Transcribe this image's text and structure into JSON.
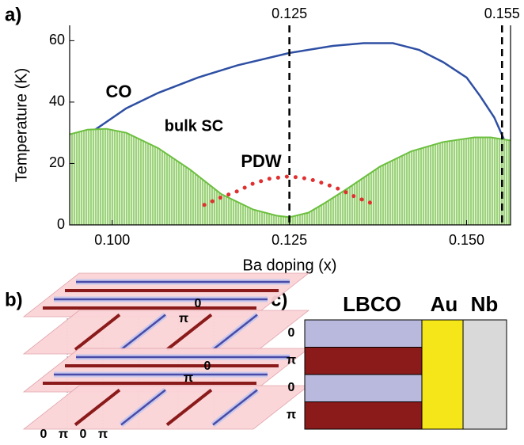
{
  "chart_data": {
    "type": "line",
    "panel_label": "a)",
    "x_label": "Ba doping (x)",
    "y_label": "Temperature (K)",
    "xlim": [
      0.094,
      0.1562
    ],
    "ylim": [
      0,
      65
    ],
    "xticks": [
      {
        "value": 0.1,
        "label": "0.100"
      },
      {
        "value": 0.125,
        "label": "0.125"
      },
      {
        "value": 0.15,
        "label": "0.150"
      }
    ],
    "yticks": [
      0,
      20,
      40,
      60
    ],
    "series": [
      {
        "name": "CO",
        "color": "#2e4fa3",
        "style": "solid",
        "x": [
          0.094,
          0.0976,
          0.102,
          0.1065,
          0.1121,
          0.1177,
          0.125,
          0.1311,
          0.1355,
          0.1396,
          0.1433,
          0.1467,
          0.15,
          0.1519,
          0.1539,
          0.1562
        ],
        "values": [
          24,
          31,
          38,
          43,
          48,
          52,
          56,
          58.3,
          59.2,
          59.2,
          57,
          53,
          48,
          42,
          35,
          23
        ]
      },
      {
        "name": "bulk SC",
        "color": "#6cbf3f",
        "style": "area",
        "x": [
          0.094,
          0.0965,
          0.0992,
          0.102,
          0.1065,
          0.111,
          0.1154,
          0.1199,
          0.1232,
          0.125,
          0.1277,
          0.1299,
          0.1333,
          0.1378,
          0.1422,
          0.1467,
          0.1511,
          0.1534,
          0.1562
        ],
        "values": [
          29.5,
          31,
          31.3,
          30,
          25,
          18,
          10,
          5,
          3,
          2.5,
          4,
          7,
          12,
          19,
          24,
          27,
          28.5,
          28.5,
          27.5
        ]
      },
      {
        "name": "PDW",
        "color": "#e03030",
        "style": "dotted",
        "x": [
          0.113,
          0.1154,
          0.1177,
          0.1199,
          0.1221,
          0.125,
          0.1277,
          0.1299,
          0.1322,
          0.1344,
          0.1372
        ],
        "values": [
          6.5,
          9,
          11,
          13.5,
          15,
          15.8,
          15,
          13.5,
          11.5,
          9,
          6.5
        ]
      }
    ],
    "vlines": [
      {
        "value": 0.125,
        "label": "0.125"
      },
      {
        "value": 0.155,
        "label": "0.155"
      }
    ]
  },
  "panel_b": {
    "label": "b)",
    "side_labels": [
      "0",
      "π",
      "0",
      "π"
    ],
    "bottom_labels": [
      "0",
      "π",
      "0",
      "π"
    ]
  },
  "panel_c": {
    "label": "c)",
    "headers": [
      "LBCO",
      "Au",
      "Nb"
    ],
    "layers": [
      "0",
      "π",
      "0",
      "π"
    ]
  }
}
